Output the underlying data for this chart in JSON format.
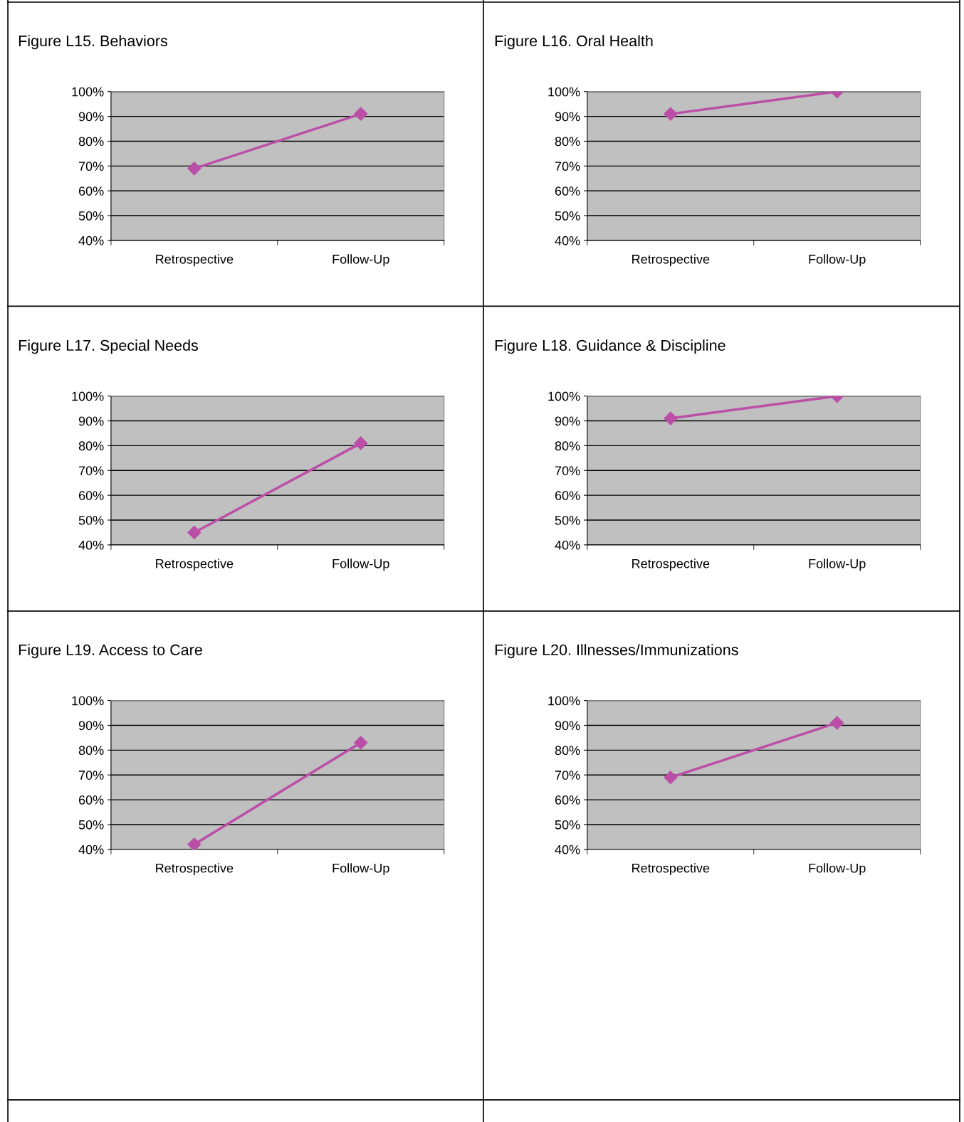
{
  "chart_data": [
    {
      "type": "line",
      "title": "Figure L15. Behaviors",
      "categories": [
        "Retrospective",
        "Follow-Up"
      ],
      "values": [
        69,
        91
      ],
      "color": "#bb4fa8",
      "marker": "diamond",
      "grid": "y",
      "legend": false,
      "ylim": [
        40,
        100
      ],
      "yticks": [
        {
          "value": 40,
          "label": "40%"
        },
        {
          "value": 50,
          "label": "50%"
        },
        {
          "value": 60,
          "label": "60%"
        },
        {
          "value": 70,
          "label": "70%"
        },
        {
          "value": 80,
          "label": "80%"
        },
        {
          "value": 90,
          "label": "90%"
        },
        {
          "value": 100,
          "label": "100%"
        }
      ]
    },
    {
      "type": "line",
      "title": "Figure L16. Oral Health",
      "categories": [
        "Retrospective",
        "Follow-Up"
      ],
      "values": [
        91,
        100
      ],
      "color": "#bb4fa8",
      "marker": "diamond",
      "grid": "y",
      "legend": false,
      "ylim": [
        40,
        100
      ],
      "yticks": [
        {
          "value": 40,
          "label": "40%"
        },
        {
          "value": 50,
          "label": "50%"
        },
        {
          "value": 60,
          "label": "60%"
        },
        {
          "value": 70,
          "label": "70%"
        },
        {
          "value": 80,
          "label": "80%"
        },
        {
          "value": 90,
          "label": "90%"
        },
        {
          "value": 100,
          "label": "100%"
        }
      ]
    },
    {
      "type": "line",
      "title": "Figure L17. Special Needs",
      "categories": [
        "Retrospective",
        "Follow-Up"
      ],
      "values": [
        45,
        81
      ],
      "color": "#bb4fa8",
      "marker": "diamond",
      "grid": "y",
      "legend": false,
      "ylim": [
        40,
        100
      ],
      "yticks": [
        {
          "value": 40,
          "label": "40%"
        },
        {
          "value": 50,
          "label": "50%"
        },
        {
          "value": 60,
          "label": "60%"
        },
        {
          "value": 70,
          "label": "70%"
        },
        {
          "value": 80,
          "label": "80%"
        },
        {
          "value": 90,
          "label": "90%"
        },
        {
          "value": 100,
          "label": "100%"
        }
      ]
    },
    {
      "type": "line",
      "title": "Figure L18. Guidance & Discipline",
      "categories": [
        "Retrospective",
        "Follow-Up"
      ],
      "values": [
        91,
        100
      ],
      "color": "#bb4fa8",
      "marker": "diamond",
      "grid": "y",
      "legend": false,
      "ylim": [
        40,
        100
      ],
      "yticks": [
        {
          "value": 40,
          "label": "40%"
        },
        {
          "value": 50,
          "label": "50%"
        },
        {
          "value": 60,
          "label": "60%"
        },
        {
          "value": 70,
          "label": "70%"
        },
        {
          "value": 80,
          "label": "80%"
        },
        {
          "value": 90,
          "label": "90%"
        },
        {
          "value": 100,
          "label": "100%"
        }
      ]
    },
    {
      "type": "line",
      "title": "Figure L19. Access to Care",
      "categories": [
        "Retrospective",
        "Follow-Up"
      ],
      "values": [
        42,
        83
      ],
      "color": "#bb4fa8",
      "marker": "diamond",
      "grid": "y",
      "legend": false,
      "ylim": [
        40,
        100
      ],
      "yticks": [
        {
          "value": 40,
          "label": "40%"
        },
        {
          "value": 50,
          "label": "50%"
        },
        {
          "value": 60,
          "label": "60%"
        },
        {
          "value": 70,
          "label": "70%"
        },
        {
          "value": 80,
          "label": "80%"
        },
        {
          "value": 90,
          "label": "90%"
        },
        {
          "value": 100,
          "label": "100%"
        }
      ]
    },
    {
      "type": "line",
      "title": "Figure L20. Illnesses/Immunizations",
      "categories": [
        "Retrospective",
        "Follow-Up"
      ],
      "values": [
        69,
        91
      ],
      "color": "#bb4fa8",
      "marker": "diamond",
      "grid": "y",
      "legend": false,
      "ylim": [
        40,
        100
      ],
      "yticks": [
        {
          "value": 40,
          "label": "40%"
        },
        {
          "value": 50,
          "label": "50%"
        },
        {
          "value": 60,
          "label": "60%"
        },
        {
          "value": 70,
          "label": "70%"
        },
        {
          "value": 80,
          "label": "80%"
        },
        {
          "value": 90,
          "label": "90%"
        },
        {
          "value": 100,
          "label": "100%"
        }
      ]
    }
  ]
}
